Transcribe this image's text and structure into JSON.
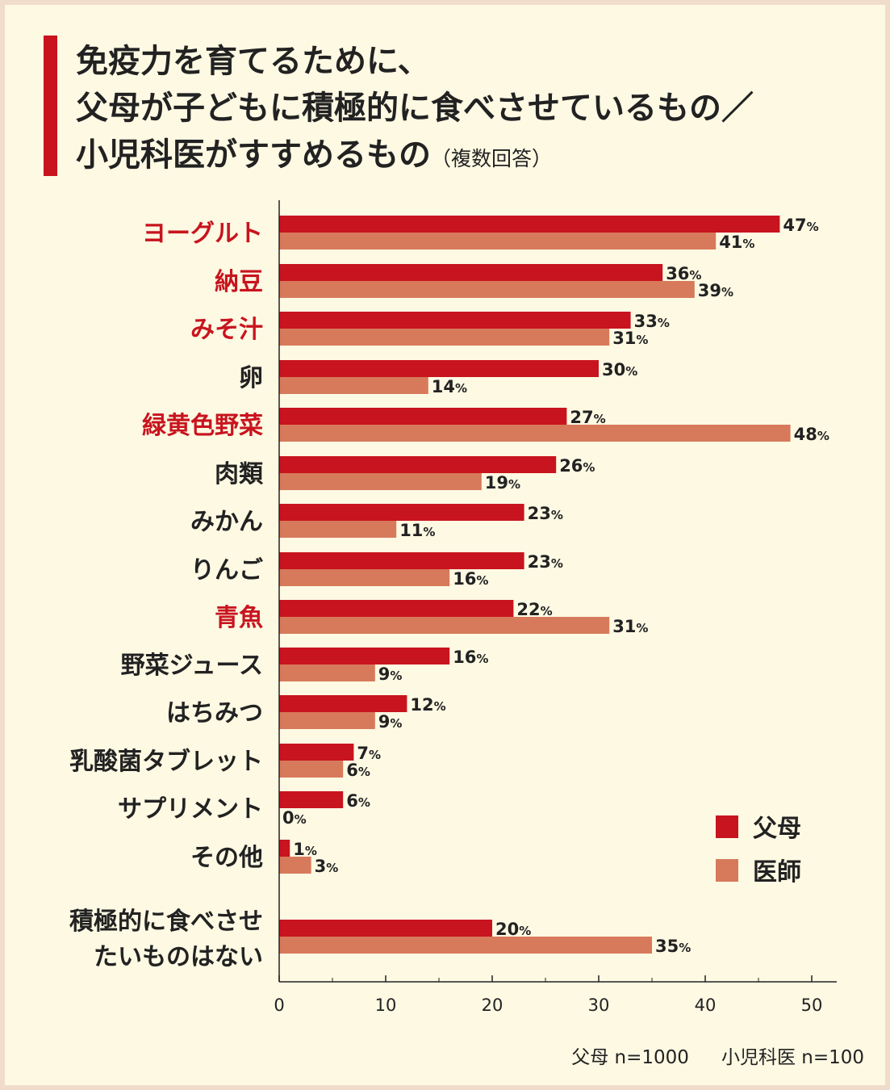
{
  "title": {
    "line1": "免疫力を育てるために、",
    "line2": "父母が子どもに積極的に食べさせているもの／",
    "line3": "小児科医がすすめるもの",
    "note": "（複数回答）"
  },
  "sample": {
    "parents": "父母 n=1000",
    "doctors": "小児科医 n=100"
  },
  "colors": {
    "parents": "#c8141e",
    "doctors": "#d77a5b",
    "highlight_label": "#c8141e",
    "normal_label": "#222222"
  },
  "chart_data": {
    "type": "bar",
    "orientation": "horizontal",
    "title": "免疫力を育てるために、父母が子どもに積極的に食べさせているもの／小児科医がすすめるもの（複数回答）",
    "categories": [
      [
        "ヨーグルト"
      ],
      [
        "納豆"
      ],
      [
        "みそ汁"
      ],
      [
        "卵"
      ],
      [
        "緑黄色野菜"
      ],
      [
        "肉類"
      ],
      [
        "みかん"
      ],
      [
        "りんご"
      ],
      [
        "青魚"
      ],
      [
        "野菜ジュース"
      ],
      [
        "はちみつ"
      ],
      [
        "乳酸菌タブレット"
      ],
      [
        "サプリメント"
      ],
      [
        "その他"
      ],
      [
        "積極的に食べさせ",
        "たいものはない"
      ]
    ],
    "highlighted": [
      true,
      true,
      true,
      false,
      true,
      false,
      false,
      false,
      true,
      false,
      false,
      false,
      false,
      false,
      false
    ],
    "series": [
      {
        "name": "父母",
        "values": [
          47,
          36,
          33,
          30,
          27,
          26,
          23,
          23,
          22,
          16,
          12,
          7,
          6,
          1,
          20
        ]
      },
      {
        "name": "医師",
        "values": [
          41,
          39,
          31,
          14,
          48,
          19,
          11,
          16,
          31,
          9,
          9,
          6,
          0,
          3,
          35
        ]
      }
    ],
    "value_suffix": "%",
    "xlim": [
      0,
      50
    ],
    "xticks": [
      0,
      10,
      20,
      30,
      40,
      50
    ],
    "legend": "bottom-right"
  }
}
